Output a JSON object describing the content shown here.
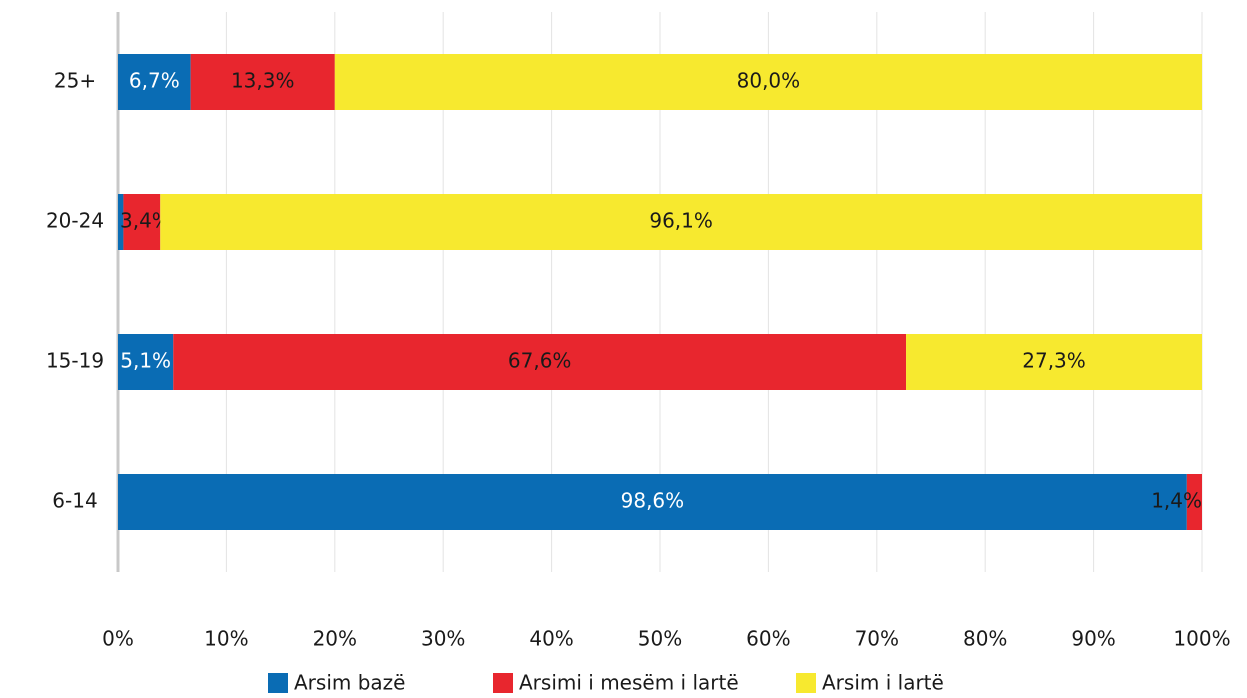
{
  "chart_data": {
    "type": "stacked_hbar",
    "categories": [
      "25+",
      "20-24",
      "15-19",
      "6-14"
    ],
    "series": [
      {
        "name": "Arsim bazë",
        "color": "#0a6cb4",
        "values": [
          6.7,
          0.5,
          5.1,
          98.6
        ],
        "value_labels": [
          "6,7%",
          null,
          "5,1%",
          "98,6%"
        ]
      },
      {
        "name": "Arsimi i mesëm i lartë",
        "color": "#e8262e",
        "values": [
          13.3,
          3.4,
          67.6,
          1.4
        ],
        "value_labels": [
          "13,3%",
          "3,4%",
          "67,6%",
          "1,4%"
        ]
      },
      {
        "name": "Arsim i lartë",
        "color": "#f7e92f",
        "values": [
          80.0,
          96.1,
          27.3,
          0
        ],
        "value_labels": [
          "80,0%",
          "96,1%",
          "27,3%",
          null
        ]
      }
    ],
    "xlim": [
      0,
      100
    ],
    "xticks": [
      {
        "value": 0,
        "label": "0%"
      },
      {
        "value": 10,
        "label": "10%"
      },
      {
        "value": 20,
        "label": "20%"
      },
      {
        "value": 30,
        "label": "30%"
      },
      {
        "value": 40,
        "label": "40%"
      },
      {
        "value": 50,
        "label": "50%"
      },
      {
        "value": 60,
        "label": "60%"
      },
      {
        "value": 70,
        "label": "70%"
      },
      {
        "value": 80,
        "label": "80%"
      },
      {
        "value": 90,
        "label": "90%"
      },
      {
        "value": 100,
        "label": "100%"
      }
    ],
    "grid": true,
    "legend": "bottom"
  }
}
